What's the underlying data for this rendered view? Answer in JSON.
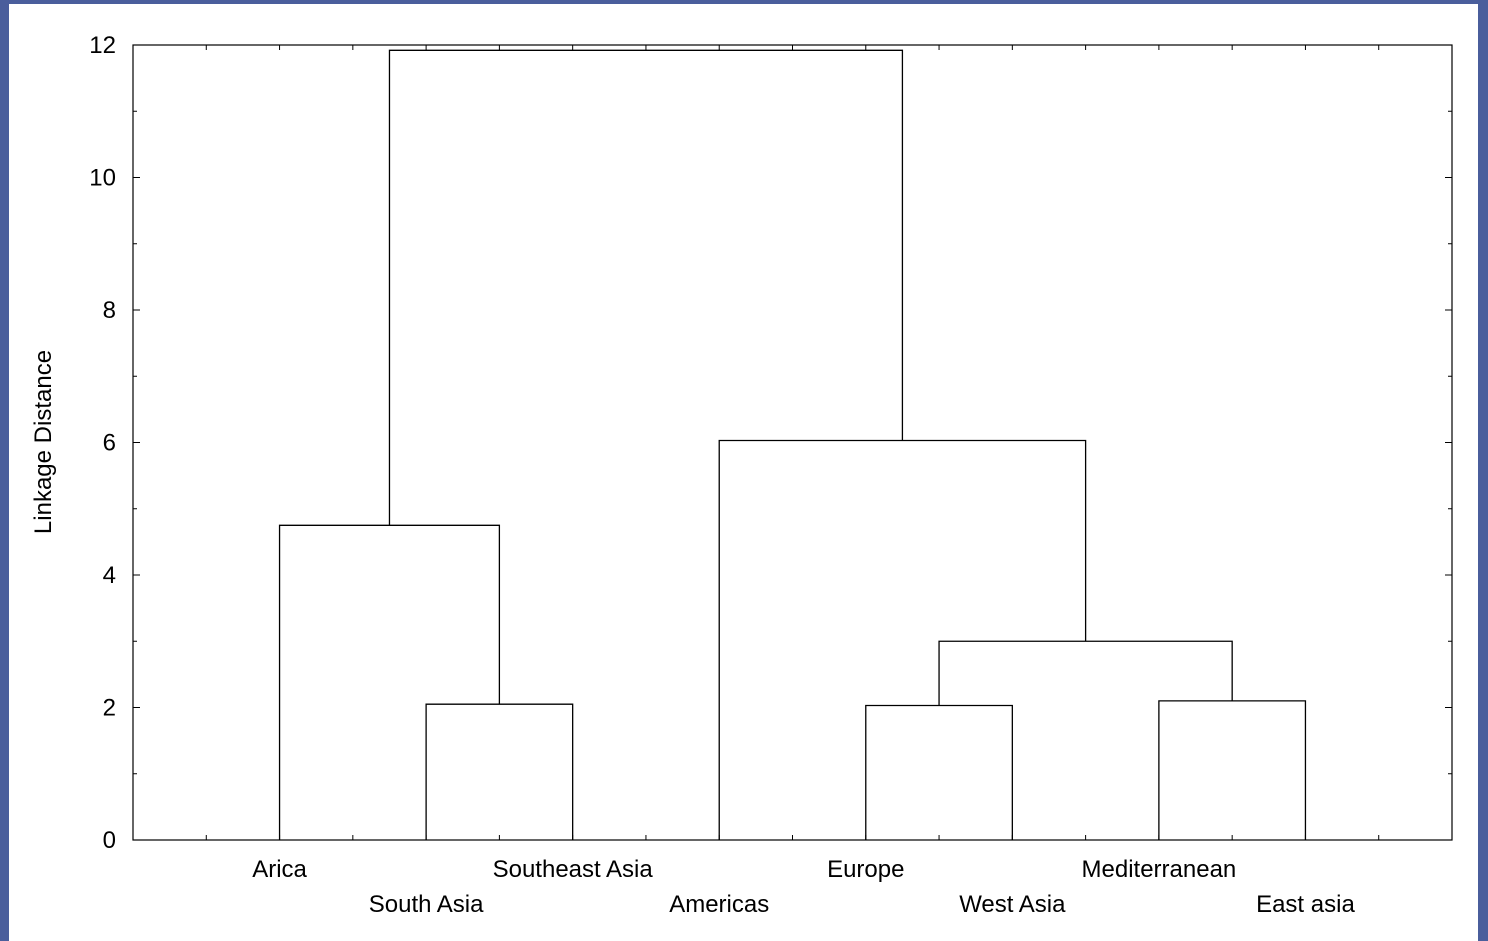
{
  "chart_data": {
    "type": "dendrogram",
    "ylabel": "Linkage Distance",
    "xlabel": "",
    "ylim": [
      0,
      12
    ],
    "yticks": [
      "0",
      "2",
      "4",
      "6",
      "8",
      "10",
      "12"
    ],
    "grid": false,
    "leaves": [
      "Arica",
      "South Asia",
      "Southeast Asia",
      "Americas",
      "Europe",
      "West Asia",
      "Mediterranean",
      "East asia"
    ],
    "merges": [
      {
        "left": "South Asia",
        "right": "Southeast Asia",
        "height": 2.05
      },
      {
        "left": "Europe",
        "right": "West Asia",
        "height": 2.03
      },
      {
        "left": "Mediterranean",
        "right": "East asia",
        "height": 2.1
      },
      {
        "left": "Europe + West Asia",
        "right": "Mediterranean + East asia",
        "height": 3.0
      },
      {
        "left": "Arica",
        "right": "South Asia + Southeast Asia",
        "height": 4.75
      },
      {
        "left": "Americas",
        "right": "Europe..East asia",
        "height": 6.03
      },
      {
        "left": "Arica..Southeast Asia",
        "right": "Americas..East asia",
        "height": 11.92
      }
    ]
  }
}
